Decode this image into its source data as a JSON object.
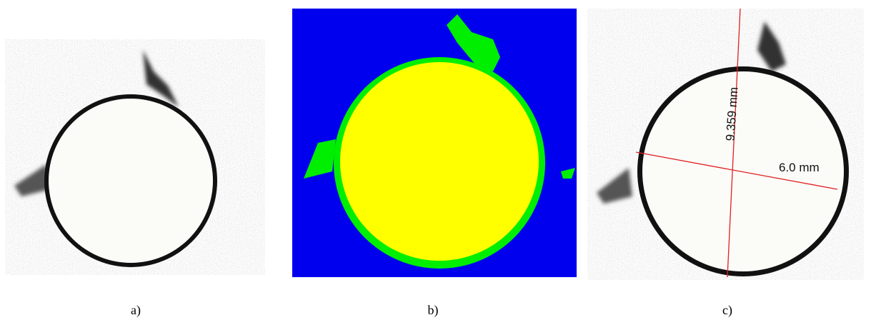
{
  "panels": [
    {
      "label": "a)"
    },
    {
      "label": "b)"
    },
    {
      "label": "c)",
      "annotations": [
        "9.359 mm",
        "6.0 mm"
      ]
    }
  ]
}
